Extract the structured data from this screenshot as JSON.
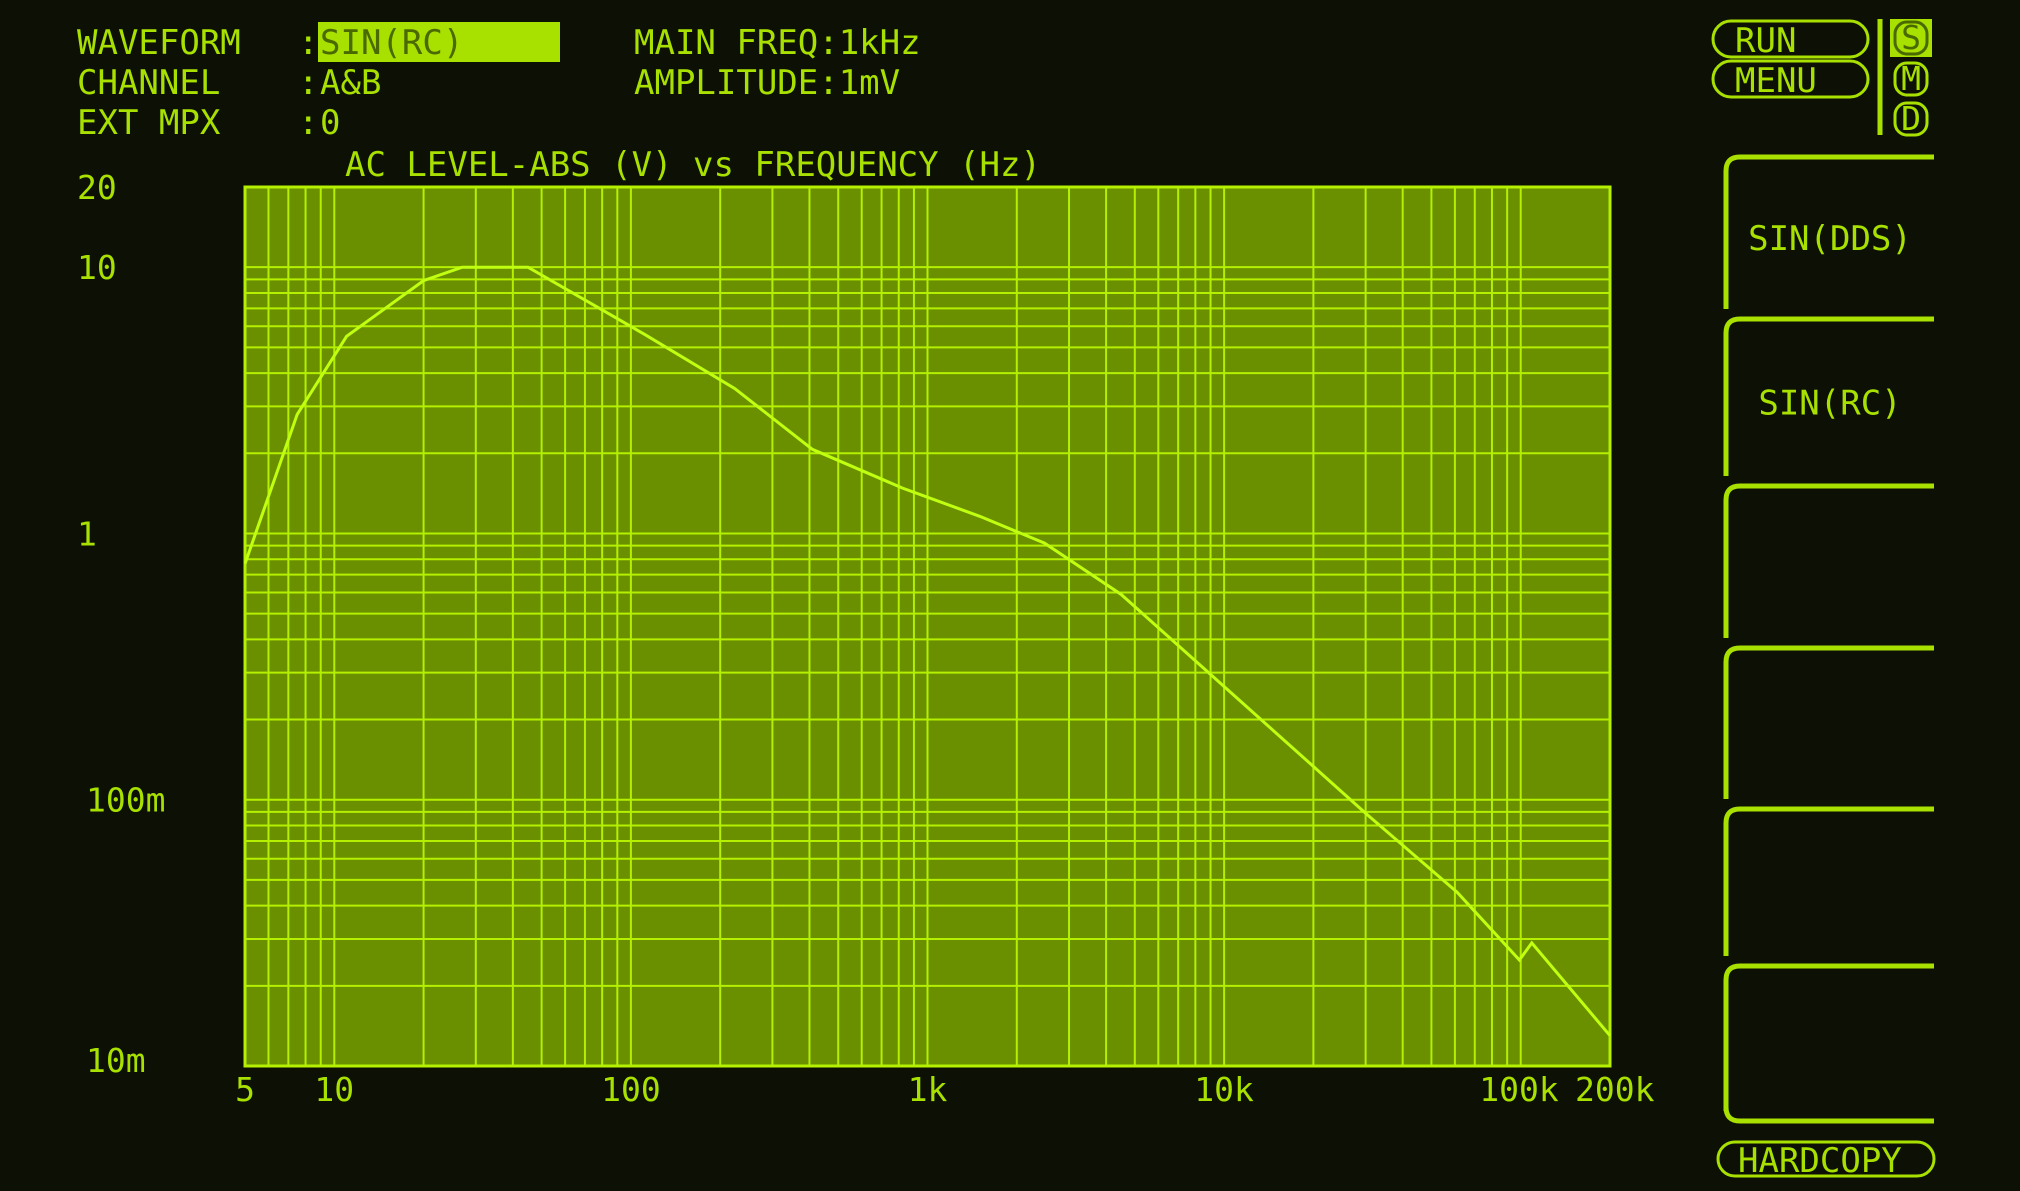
{
  "header": {
    "rows": [
      {
        "label": "WAVEFORM",
        "value": "SIN(RC)"
      },
      {
        "label": "CHANNEL",
        "value": "A&B"
      },
      {
        "label": "EXT MPX",
        "value": "0"
      }
    ],
    "colon": ":",
    "main_freq": "MAIN FREQ:1kHz",
    "amplitude": "AMPLITUDE:1mV"
  },
  "controls": {
    "run": "RUN",
    "menu": "MENU",
    "modes": [
      {
        "letter": "S",
        "active": true
      },
      {
        "letter": "M",
        "active": false
      },
      {
        "letter": "D",
        "active": false
      }
    ],
    "softkeys": [
      "SIN(DDS)",
      "SIN(RC)",
      "",
      "",
      "",
      ""
    ],
    "hardcopy": "HARDCOPY"
  },
  "colors": {
    "background": "#0d1105",
    "plot_fill": "#6a9000",
    "trace": "#b4f000"
  },
  "chart_data": {
    "type": "line",
    "title": "AC LEVEL-ABS (V) vs FREQUENCY (Hz)",
    "x_scale": "log",
    "y_scale": "log",
    "xlim": [
      5,
      200000
    ],
    "ylim": [
      0.01,
      20
    ],
    "grid": true,
    "x_ticks": [
      {
        "value": 5,
        "label": "5"
      },
      {
        "value": 10,
        "label": "10"
      },
      {
        "value": 100,
        "label": "100"
      },
      {
        "value": 1000,
        "label": "1k"
      },
      {
        "value": 10000,
        "label": "10k"
      },
      {
        "value": 100000,
        "label": "100k"
      },
      {
        "value": 200000,
        "label": "200k"
      }
    ],
    "y_ticks": [
      {
        "value": 20,
        "label": "20"
      },
      {
        "value": 10,
        "label": "10"
      },
      {
        "value": 1,
        "label": "1"
      },
      {
        "value": 0.1,
        "label": "100m"
      },
      {
        "value": 0.01,
        "label": "10m"
      }
    ],
    "series": [
      {
        "x": [
          5,
          7.5,
          11,
          20,
          27,
          45,
          111,
          224,
          409,
          824,
          1500,
          2480,
          4500,
          11100,
          30000,
          61000,
          99000,
          109000,
          200000
        ],
        "y": [
          0.77,
          2.8,
          5.5,
          8.9,
          10,
          10,
          5.6,
          3.5,
          2.07,
          1.48,
          1.16,
          0.92,
          0.59,
          0.24,
          0.089,
          0.045,
          0.025,
          0.029,
          0.013
        ]
      }
    ]
  }
}
